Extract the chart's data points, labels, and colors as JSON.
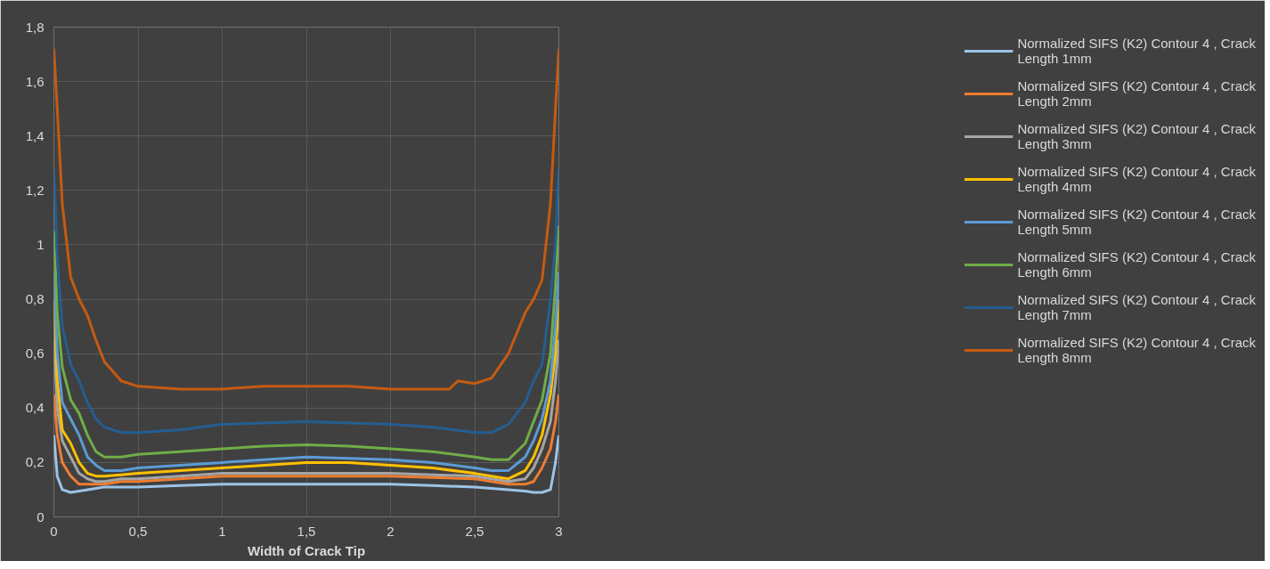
{
  "chart_data": {
    "type": "line",
    "xlabel": "Width of Crack Tip",
    "x": [
      0,
      0.02,
      0.05,
      0.1,
      0.15,
      0.2,
      0.25,
      0.3,
      0.4,
      0.5,
      0.75,
      1,
      1.25,
      1.5,
      1.75,
      2,
      2.25,
      2.5,
      2.6,
      2.7,
      2.8,
      2.85,
      2.9,
      2.95,
      2.98,
      3
    ],
    "series": [
      {
        "name": "Normalized SIFS (K2) Contour 4 , Crack Length 1mm",
        "color": "#9dc3e6",
        "values": [
          0.3,
          0.15,
          0.1,
          0.09,
          0.095,
          0.1,
          0.105,
          0.11,
          0.11,
          0.11,
          0.115,
          0.12,
          0.12,
          0.12,
          0.12,
          0.12,
          0.115,
          0.11,
          0.105,
          0.1,
          0.095,
          0.09,
          0.09,
          0.1,
          0.2,
          0.3
        ]
      },
      {
        "name": "Normalized SIFS (K2) Contour 4 , Crack Length 2mm",
        "color": "#ed7d31",
        "values": [
          0.45,
          0.3,
          0.2,
          0.15,
          0.12,
          0.12,
          0.12,
          0.12,
          0.13,
          0.13,
          0.14,
          0.15,
          0.15,
          0.15,
          0.15,
          0.15,
          0.145,
          0.14,
          0.13,
          0.12,
          0.12,
          0.13,
          0.18,
          0.25,
          0.35,
          0.45
        ]
      },
      {
        "name": "Normalized SIFS (K2) Contour 4 , Crack Length 3mm",
        "color": "#a5a5a5",
        "values": [
          0.65,
          0.4,
          0.28,
          0.22,
          0.16,
          0.14,
          0.13,
          0.13,
          0.14,
          0.14,
          0.15,
          0.16,
          0.16,
          0.16,
          0.16,
          0.16,
          0.155,
          0.15,
          0.14,
          0.13,
          0.14,
          0.18,
          0.25,
          0.35,
          0.5,
          0.65
        ]
      },
      {
        "name": "Normalized SIFS (K2) Contour 4 , Crack Length 4mm",
        "color": "#ffc000",
        "values": [
          0.8,
          0.5,
          0.32,
          0.27,
          0.2,
          0.16,
          0.15,
          0.15,
          0.155,
          0.16,
          0.17,
          0.18,
          0.19,
          0.2,
          0.2,
          0.19,
          0.18,
          0.16,
          0.15,
          0.14,
          0.17,
          0.22,
          0.3,
          0.45,
          0.6,
          0.8
        ]
      },
      {
        "name": "Normalized SIFS (K2) Contour 4 , Crack Length 5mm",
        "color": "#5b9bd5",
        "values": [
          0.9,
          0.6,
          0.42,
          0.36,
          0.3,
          0.22,
          0.19,
          0.17,
          0.17,
          0.18,
          0.19,
          0.2,
          0.21,
          0.22,
          0.215,
          0.21,
          0.2,
          0.18,
          0.17,
          0.17,
          0.22,
          0.28,
          0.36,
          0.5,
          0.7,
          0.9
        ]
      },
      {
        "name": "Normalized SIFS (K2) Contour 4 , Crack Length 6mm",
        "color": "#70ad47",
        "values": [
          1.05,
          0.75,
          0.55,
          0.43,
          0.38,
          0.3,
          0.24,
          0.22,
          0.22,
          0.23,
          0.24,
          0.25,
          0.26,
          0.265,
          0.26,
          0.25,
          0.24,
          0.22,
          0.21,
          0.21,
          0.27,
          0.35,
          0.43,
          0.6,
          0.85,
          1.07
        ]
      },
      {
        "name": "Normalized SIFS (K2) Contour 4 , Crack Length 7mm",
        "color": "#255e91",
        "values": [
          1.28,
          0.95,
          0.7,
          0.56,
          0.5,
          0.42,
          0.36,
          0.33,
          0.31,
          0.31,
          0.32,
          0.34,
          0.345,
          0.35,
          0.345,
          0.34,
          0.33,
          0.31,
          0.31,
          0.34,
          0.42,
          0.5,
          0.56,
          0.8,
          1.0,
          1.28
        ]
      },
      {
        "name": "Normalized SIFS (K2) Contour 4 , Crack Length 8mm",
        "color": "#c55a11",
        "x": [
          0,
          0.02,
          0.05,
          0.1,
          0.15,
          0.2,
          0.25,
          0.3,
          0.4,
          0.5,
          0.75,
          1,
          1.25,
          1.5,
          1.75,
          2,
          2.25,
          2.35,
          2.4,
          2.5,
          2.6,
          2.7,
          2.8,
          2.85,
          2.9,
          2.95,
          2.98,
          3
        ],
        "values": [
          1.72,
          1.5,
          1.15,
          0.88,
          0.8,
          0.74,
          0.65,
          0.57,
          0.5,
          0.48,
          0.47,
          0.47,
          0.48,
          0.48,
          0.48,
          0.47,
          0.47,
          0.47,
          0.5,
          0.49,
          0.51,
          0.6,
          0.75,
          0.8,
          0.87,
          1.15,
          1.5,
          1.72
        ]
      }
    ],
    "xlim": [
      0,
      3
    ],
    "ylim": [
      0,
      1.8
    ],
    "xticks": [
      0,
      {
        "value": 0.5,
        "label": "0,5"
      },
      1,
      {
        "value": 1.5,
        "label": "1,5"
      },
      2,
      {
        "value": 2.5,
        "label": "2,5"
      },
      3
    ],
    "yticks": [
      0,
      {
        "value": 0.2,
        "label": "0,2"
      },
      {
        "value": 0.4,
        "label": "0,4"
      },
      {
        "value": 0.6,
        "label": "0,6"
      },
      {
        "value": 0.8,
        "label": "0,8"
      },
      1,
      {
        "value": 1.2,
        "label": "1,2"
      },
      {
        "value": 1.4,
        "label": "1,4"
      },
      {
        "value": 1.6,
        "label": "1,6"
      },
      {
        "value": 1.8,
        "label": "1,8"
      }
    ],
    "grid": true,
    "legend": "right",
    "line_style": "solid",
    "marker": "none"
  }
}
